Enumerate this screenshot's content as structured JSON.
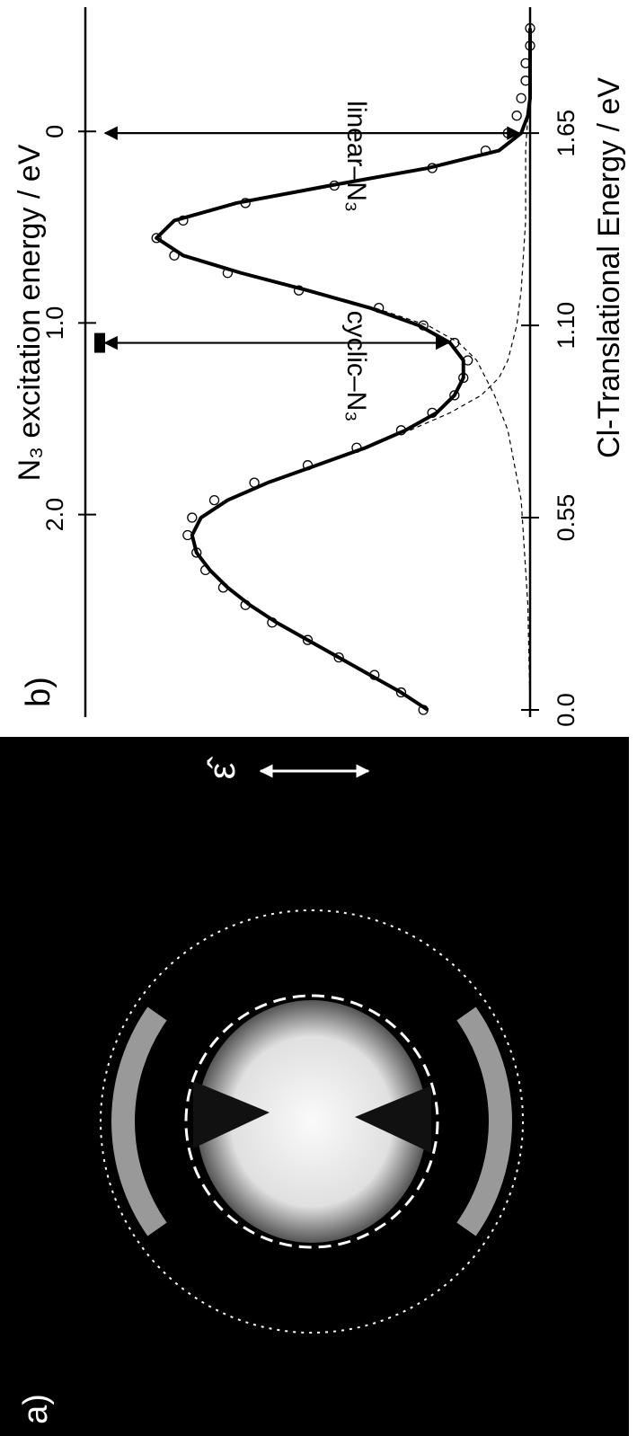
{
  "image_panel": {
    "label": "a)",
    "polarization_label": "ε̂"
  },
  "chart_data": {
    "type": "line",
    "panel_label": "b)",
    "xlabel": "Cl-Translational Energy / eV",
    "x2label": "N₃ excitation energy / eV",
    "xlim": [
      0,
      2.0
    ],
    "xticks": [
      {
        "value": 0,
        "label": "0.0"
      },
      0.55,
      {
        "value": 1.1,
        "label": "1.10"
      },
      1.65
    ],
    "x2lim": [
      3.02,
      -0.63
    ],
    "x2ticks": [
      0,
      {
        "value": 1,
        "label": "1.0"
      },
      {
        "value": 2,
        "label": "2.0"
      }
    ],
    "ylim": [
      0,
      1
    ],
    "series": [
      {
        "mode": "markers",
        "color": "#000000",
        "x": [
          0.0,
          0.05,
          0.1,
          0.15,
          0.2,
          0.25,
          0.3,
          0.35,
          0.4,
          0.45,
          0.5,
          0.55,
          0.6,
          0.65,
          0.7,
          0.75,
          0.8,
          0.85,
          0.9,
          0.95,
          1.0,
          1.05,
          1.1,
          1.15,
          1.2,
          1.25,
          1.3,
          1.35,
          1.4,
          1.45,
          1.5,
          1.55,
          1.6,
          1.65,
          1.7,
          1.75,
          1.8,
          1.85,
          1.9,
          1.95
        ],
        "values": [
          0.24,
          0.29,
          0.35,
          0.43,
          0.5,
          0.58,
          0.64,
          0.69,
          0.73,
          0.75,
          0.77,
          0.76,
          0.71,
          0.62,
          0.5,
          0.39,
          0.29,
          0.22,
          0.17,
          0.15,
          0.14,
          0.17,
          0.24,
          0.34,
          0.52,
          0.68,
          0.8,
          0.84,
          0.78,
          0.64,
          0.44,
          0.22,
          0.1,
          0.05,
          0.03,
          0.02,
          0.01,
          0.01,
          0.0,
          0.0
        ]
      },
      {
        "mode": "line",
        "color": "#000000",
        "x": [
          0.0,
          0.05,
          0.1,
          0.15,
          0.2,
          0.25,
          0.3,
          0.35,
          0.4,
          0.45,
          0.5,
          0.55,
          0.6,
          0.65,
          0.7,
          0.75,
          0.8,
          0.85,
          0.9,
          0.95,
          1.0,
          1.05,
          1.1,
          1.15,
          1.2,
          1.25,
          1.3,
          1.35,
          1.4,
          1.45,
          1.5,
          1.55,
          1.6,
          1.65,
          1.7,
          1.75,
          1.8,
          1.85,
          1.9,
          1.95
        ],
        "values": [
          0.23,
          0.29,
          0.36,
          0.43,
          0.5,
          0.57,
          0.63,
          0.68,
          0.72,
          0.75,
          0.76,
          0.74,
          0.68,
          0.59,
          0.48,
          0.37,
          0.28,
          0.21,
          0.17,
          0.15,
          0.15,
          0.18,
          0.25,
          0.36,
          0.5,
          0.65,
          0.78,
          0.84,
          0.8,
          0.66,
          0.45,
          0.23,
          0.07,
          0.02,
          0.005,
          0,
          0,
          0,
          0,
          0
        ]
      },
      {
        "mode": "dashed",
        "color": "#000000",
        "x": [
          0.8,
          0.85,
          0.9,
          0.95,
          1.0,
          1.1,
          1.2,
          1.4,
          1.6,
          1.8,
          1.95
        ],
        "values": [
          0.27,
          0.18,
          0.11,
          0.07,
          0.05,
          0.03,
          0.02,
          0.01,
          0.01,
          0,
          0
        ]
      },
      {
        "mode": "dashed",
        "color": "#000000",
        "x": [
          0.0,
          0.3,
          0.6,
          0.8,
          0.9,
          1.0,
          1.05,
          1.1,
          1.15,
          1.2
        ],
        "values": [
          0,
          0.005,
          0.02,
          0.05,
          0.08,
          0.12,
          0.16,
          0.23,
          0.35,
          0.5
        ]
      }
    ],
    "annotations": [
      {
        "text": "cyclic–N₃",
        "x": 1.05
      },
      {
        "text": "linear–N₃",
        "x": 1.65
      }
    ]
  }
}
